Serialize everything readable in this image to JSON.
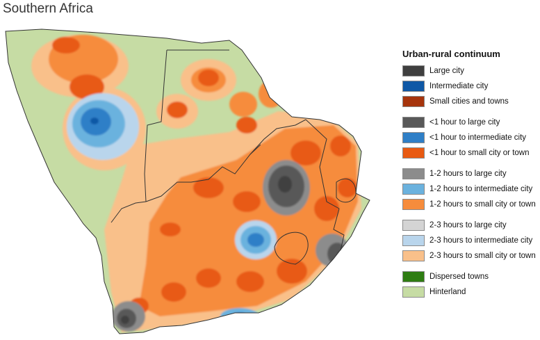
{
  "map": {
    "title": "Southern Africa"
  },
  "legend": {
    "title": "Urban-rural continuum",
    "groups": [
      [
        {
          "label": "Large city",
          "color": "#3f3f3f"
        },
        {
          "label": "Intermediate city",
          "color": "#0f58a6"
        },
        {
          "label": "Small cities and towns",
          "color": "#a6340c"
        }
      ],
      [
        {
          "label": "<1 hour to large city",
          "color": "#595959"
        },
        {
          "label": "<1 hour to intermediate city",
          "color": "#2f7fc7"
        },
        {
          "label": "<1 hour to small city or town",
          "color": "#e85a12"
        }
      ],
      [
        {
          "label": "1-2 hours to large city",
          "color": "#8c8c8c"
        },
        {
          "label": "1-2 hours to intermediate city",
          "color": "#6bb2de"
        },
        {
          "label": "1-2 hours to small city or town",
          "color": "#f68c3c"
        }
      ],
      [
        {
          "label": "2-3 hours to large city",
          "color": "#d4d4d4"
        },
        {
          "label": "2-3 hours to intermediate city",
          "color": "#b9d5ec"
        },
        {
          "label": "2-3 hours to small city or town",
          "color": "#f9c08a"
        }
      ],
      [
        {
          "label": "Dispersed towns",
          "color": "#2e7d12"
        },
        {
          "label": "Hinterland",
          "color": "#c6dca4"
        }
      ]
    ]
  }
}
